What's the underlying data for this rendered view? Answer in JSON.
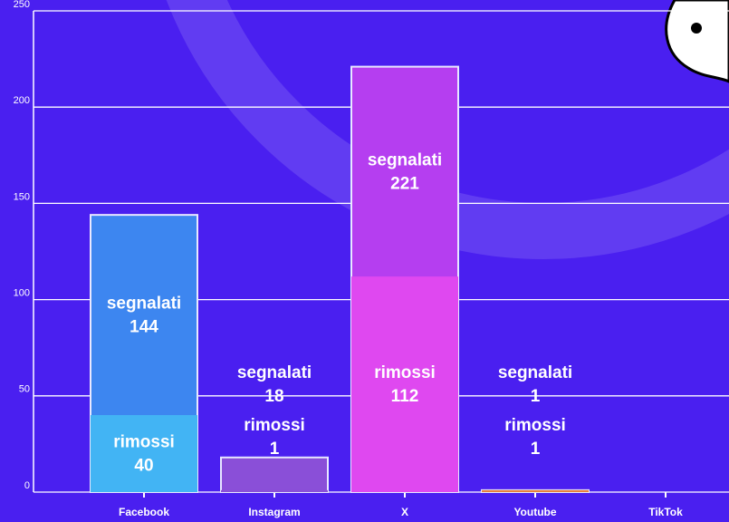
{
  "chart_data": {
    "type": "bar",
    "categories": [
      "Facebook",
      "Instagram",
      "X",
      "Youtube",
      "TikTok"
    ],
    "series": [
      {
        "name": "segnalati",
        "values": [
          144,
          18,
          221,
          1,
          null
        ],
        "colors": [
          "#3d86f0",
          "#8a4fd8",
          "#b53ef0",
          "#e8803a",
          "#e8803a"
        ]
      },
      {
        "name": "rimossi",
        "values": [
          40,
          1,
          112,
          1,
          null
        ],
        "colors": [
          "#42b4f4",
          "#8a4fd8",
          "#df48f0",
          "#e8803a",
          "#e8803a"
        ]
      }
    ],
    "ylim": [
      0,
      250
    ],
    "yticks": [
      0,
      50,
      100,
      150,
      200,
      250
    ],
    "grid": true
  }
}
